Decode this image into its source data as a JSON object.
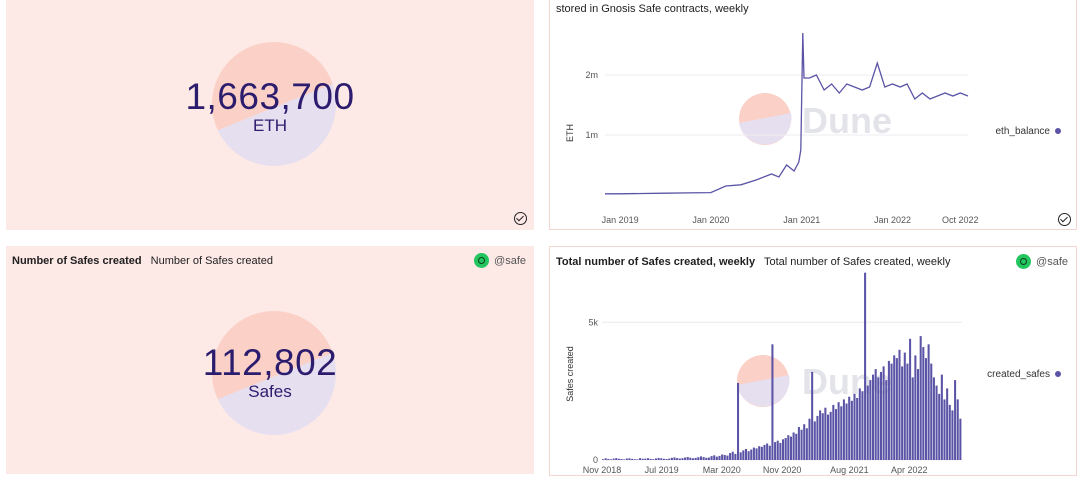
{
  "panels": {
    "eth_counter": {
      "value": "1,663,700",
      "unit": "ETH"
    },
    "eth_chart": {
      "subtitle_line": "stored in Gnosis Safe contracts, weekly",
      "watermark": "Dune"
    },
    "safes_counter": {
      "title": "Number of Safes created",
      "subtitle": "Number of Safes created",
      "owner": "@safe",
      "value": "112,802",
      "unit": "Safes"
    },
    "safes_chart": {
      "title": "Total number of Safes created, weekly",
      "subtitle": "Total number of Safes created, weekly",
      "owner": "@safe",
      "watermark": "Dune"
    }
  },
  "colors": {
    "accent": "#5b54a6",
    "counter_bg": "#fde9e6",
    "number": "#2b1c6e"
  },
  "chart_data": [
    {
      "type": "line",
      "ylabel": "ETH",
      "x_tick_labels": [
        "Jan 2019",
        "Jan 2020",
        "Jan 2021",
        "Jan 2022",
        "Oct 2022"
      ],
      "y_tick_labels": [
        "1m",
        "2m"
      ],
      "ylim": [
        0,
        2800000
      ],
      "legend": "right",
      "series": [
        {
          "name": "eth_balance",
          "x": [
            "2018-11",
            "2019-01",
            "2019-04",
            "2019-07",
            "2019-10",
            "2020-01",
            "2020-03",
            "2020-05",
            "2020-07",
            "2020-09",
            "2020-10",
            "2020-11",
            "2020-12",
            "2020-12-20",
            "2020-12-28",
            "2021-01-05",
            "2021-01-10",
            "2021-02",
            "2021-03",
            "2021-04",
            "2021-05",
            "2021-06",
            "2021-07",
            "2021-08",
            "2021-09",
            "2021-10",
            "2021-11",
            "2021-12",
            "2022-01",
            "2022-02",
            "2022-03",
            "2022-04",
            "2022-05",
            "2022-06",
            "2022-07",
            "2022-08",
            "2022-09",
            "2022-10",
            "2022-11"
          ],
          "y": [
            20000,
            20000,
            25000,
            30000,
            35000,
            40000,
            150000,
            170000,
            250000,
            350000,
            300000,
            500000,
            400000,
            550000,
            750000,
            2700000,
            1950000,
            1950000,
            2000000,
            1750000,
            1850000,
            1700000,
            1850000,
            1800000,
            1750000,
            1800000,
            2200000,
            1800000,
            1850000,
            1800000,
            1850000,
            1600000,
            1700000,
            1600000,
            1650000,
            1700000,
            1650000,
            1700000,
            1650000
          ]
        }
      ]
    },
    {
      "type": "bar",
      "ylabel": "Safes created",
      "x_tick_labels": [
        "Nov 2018",
        "Jul 2019",
        "Mar 2020",
        "Nov 2020",
        "Aug 2021",
        "Apr 2022"
      ],
      "y_tick_labels": [
        "0",
        "5k"
      ],
      "ylim": [
        0,
        6500
      ],
      "legend": "right",
      "series": [
        {
          "name": "created_safes",
          "values": [
            30,
            60,
            40,
            25,
            50,
            70,
            45,
            35,
            20,
            55,
            60,
            40,
            30,
            25,
            70,
            45,
            50,
            65,
            40,
            30,
            55,
            75,
            60,
            45,
            35,
            50,
            80,
            95,
            70,
            55,
            65,
            90,
            110,
            85,
            60,
            75,
            100,
            130,
            105,
            80,
            90,
            140,
            170,
            120,
            150,
            200,
            180,
            160,
            250,
            300,
            220,
            2800,
            280,
            350,
            400,
            320,
            380,
            450,
            420,
            500,
            480,
            550,
            600,
            520,
            4200,
            650,
            700,
            620,
            750,
            800,
            900,
            850,
            1000,
            950,
            1200,
            1100,
            1300,
            1150,
            1500,
            3200,
            1400,
            1600,
            1800,
            1700,
            1900,
            1650,
            1750,
            2000,
            1850,
            2100,
            1950,
            2200,
            2050,
            2300,
            2150,
            2400,
            2250,
            2600,
            2500,
            6800,
            2700,
            2900,
            3100,
            3300,
            3000,
            3200,
            3400,
            2900,
            3600,
            3500,
            3800,
            3700,
            4000,
            3400,
            3900,
            3500,
            4400,
            3000,
            3800,
            3300,
            4500,
            4100,
            3700,
            4200,
            3500,
            3000,
            2700,
            2400,
            3100,
            2200,
            2600,
            2000,
            1800,
            2900,
            2200,
            1500
          ]
        }
      ]
    }
  ]
}
